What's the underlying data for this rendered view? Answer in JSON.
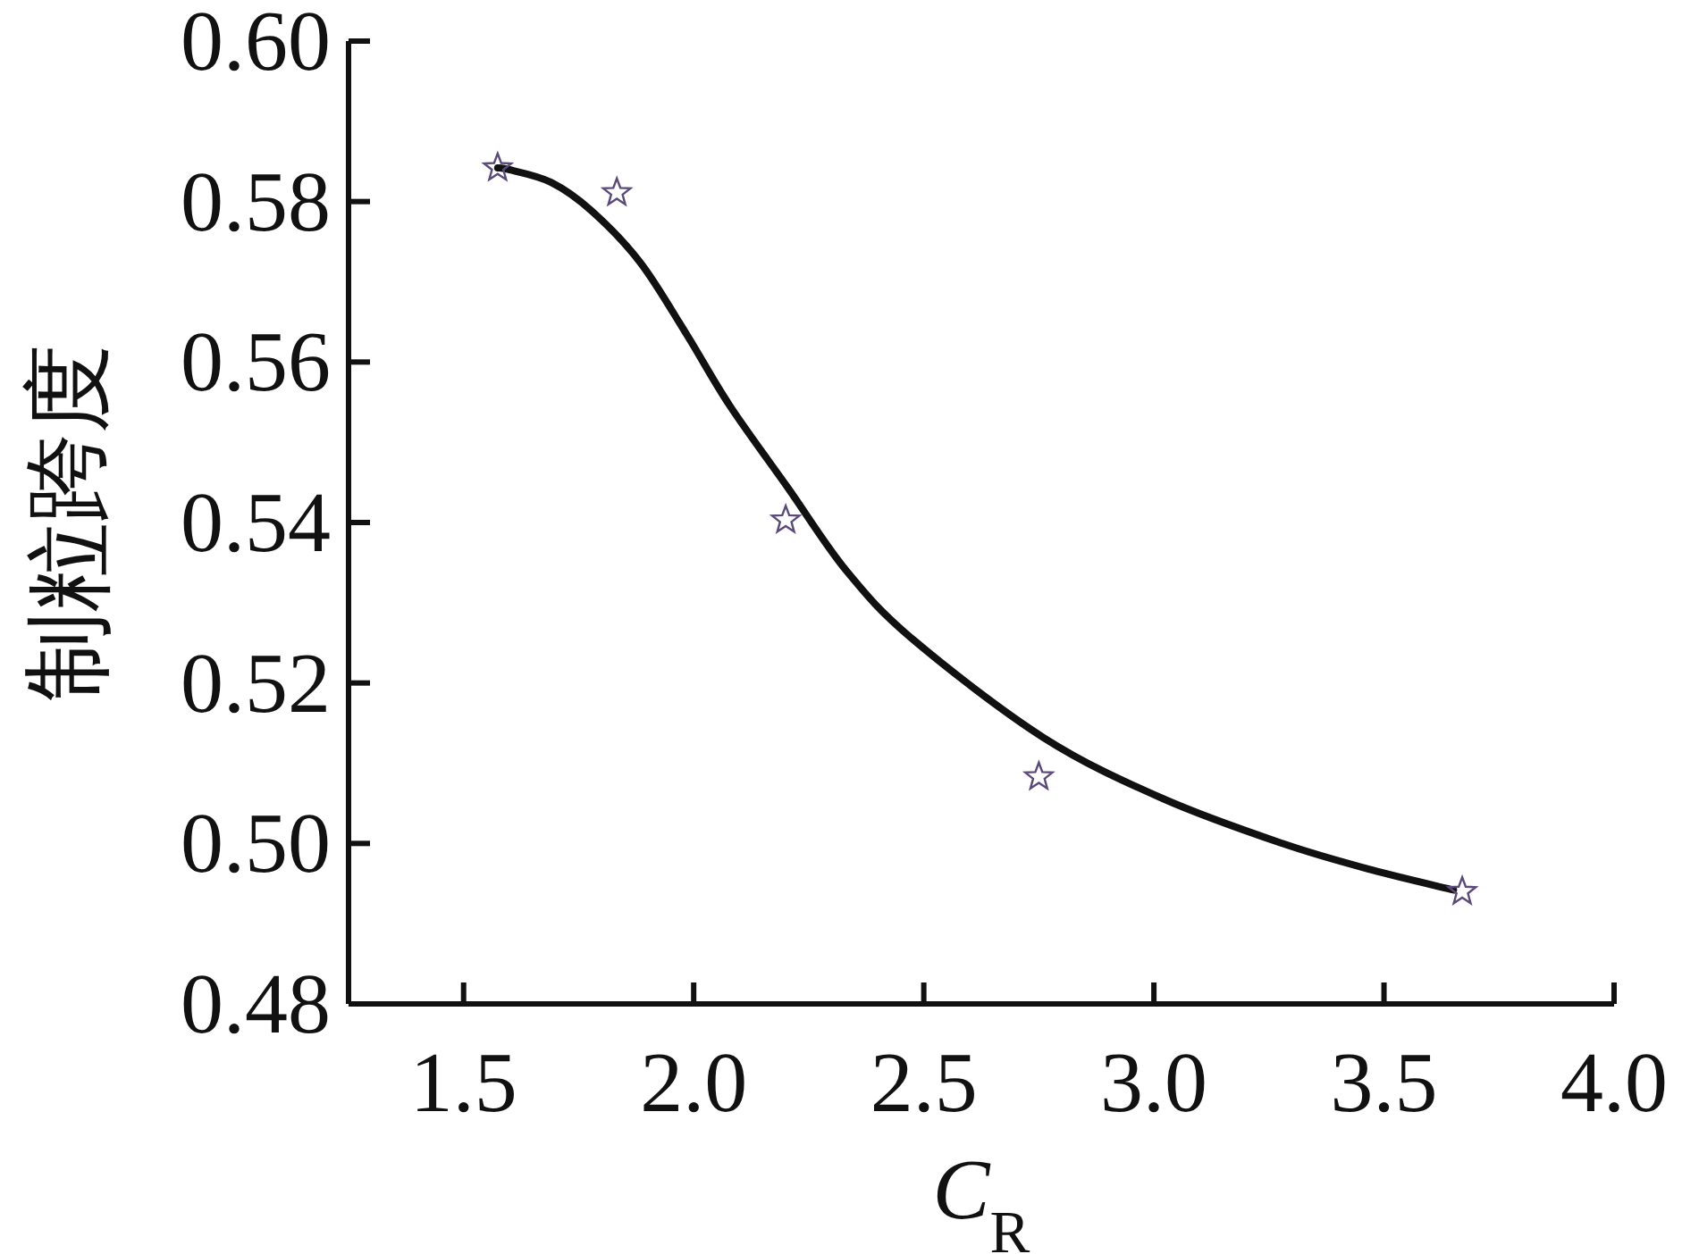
{
  "chart_data": {
    "type": "scatter",
    "xlabel": "C$_{R}$",
    "ylabel": "制粒跨度",
    "xlim": [
      1.25,
      4.0
    ],
    "xticks": [
      {
        "value": 1.5,
        "label": "1.5"
      },
      {
        "value": 2.0,
        "label": "2.0"
      },
      {
        "value": 2.5,
        "label": "2.5"
      },
      {
        "value": 3.0,
        "label": "3.0"
      },
      {
        "value": 3.5,
        "label": "3.5"
      },
      {
        "value": 4.0,
        "label": "4.0"
      }
    ],
    "ylim": [
      0.48,
      0.6
    ],
    "yticks": [
      {
        "value": 0.48,
        "label": "0.48"
      },
      {
        "value": 0.5,
        "label": "0.50"
      },
      {
        "value": 0.52,
        "label": "0.52"
      },
      {
        "value": 0.54,
        "label": "0.54"
      },
      {
        "value": 0.56,
        "label": "0.56"
      },
      {
        "value": 0.58,
        "label": "0.58"
      },
      {
        "value": 0.6,
        "label": "0.60"
      }
    ],
    "grid": false,
    "series": [
      {
        "type": "line",
        "color": "#111111",
        "marker": "none",
        "line_style": "solid",
        "x": [
          1.574,
          1.597,
          1.69,
          1.779,
          1.884,
          1.984,
          2.078,
          2.205,
          2.333,
          2.477,
          2.76,
          3.019,
          3.279,
          3.473,
          3.651
        ],
        "values": [
          0.5842,
          0.584,
          0.5824,
          0.5788,
          0.5724,
          0.5635,
          0.5546,
          0.5443,
          0.5339,
          0.5254,
          0.5132,
          0.5056,
          0.5,
          0.4967,
          0.4942
        ]
      },
      {
        "color": "#5a4a7a",
        "marker": "star",
        "x": [
          1.574,
          1.833,
          2.2,
          2.75,
          3.67
        ],
        "values": [
          0.5842,
          0.5811,
          0.5403,
          0.5083,
          0.494
        ]
      }
    ]
  }
}
